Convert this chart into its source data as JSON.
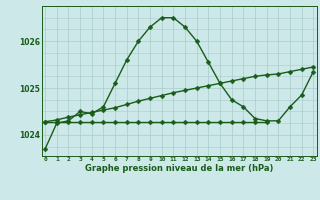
{
  "xlabel": "Graphe pression niveau de la mer (hPa)",
  "background_color": "#cce8e8",
  "grid_color": "#aacccc",
  "line_color": "#1a5c1a",
  "hours": [
    0,
    1,
    2,
    3,
    4,
    5,
    6,
    7,
    8,
    9,
    10,
    11,
    12,
    13,
    14,
    15,
    16,
    17,
    18,
    19,
    20,
    21,
    22,
    23
  ],
  "main_values": [
    1023.7,
    1024.25,
    1024.3,
    1024.5,
    1024.45,
    1024.6,
    1025.1,
    1025.6,
    1026.0,
    1026.3,
    1026.5,
    1026.5,
    1026.3,
    1026.0,
    1025.55,
    1025.1,
    1024.75,
    1024.6,
    1024.35,
    1024.3,
    1024.3,
    1024.6,
    1024.85,
    1025.35
  ],
  "min_x": [
    0,
    1,
    2,
    3,
    4,
    5,
    6,
    7,
    8,
    9,
    10,
    11,
    12,
    13,
    14,
    15,
    16,
    17,
    18,
    19
  ],
  "min_values": [
    1024.28,
    1024.28,
    1024.28,
    1024.28,
    1024.28,
    1024.28,
    1024.28,
    1024.28,
    1024.28,
    1024.28,
    1024.28,
    1024.28,
    1024.28,
    1024.28,
    1024.28,
    1024.28,
    1024.28,
    1024.28,
    1024.28,
    1024.28
  ],
  "max_x": [
    0,
    1,
    2,
    3,
    4,
    5,
    6,
    7,
    8,
    9,
    10,
    11,
    12,
    13,
    14,
    15,
    16,
    17,
    18,
    19,
    20,
    21,
    22,
    23
  ],
  "max_values": [
    1024.28,
    1024.32,
    1024.38,
    1024.43,
    1024.48,
    1024.53,
    1024.58,
    1024.65,
    1024.72,
    1024.78,
    1024.84,
    1024.9,
    1024.95,
    1025.0,
    1025.05,
    1025.1,
    1025.15,
    1025.2,
    1025.25,
    1025.28,
    1025.3,
    1025.35,
    1025.4,
    1025.45
  ],
  "ylim": [
    1023.55,
    1026.75
  ],
  "yticks": [
    1024,
    1025,
    1026
  ],
  "ytick_labels": [
    "1024",
    "1025",
    "1026"
  ],
  "marker_size": 2.5,
  "line_width": 1.0
}
